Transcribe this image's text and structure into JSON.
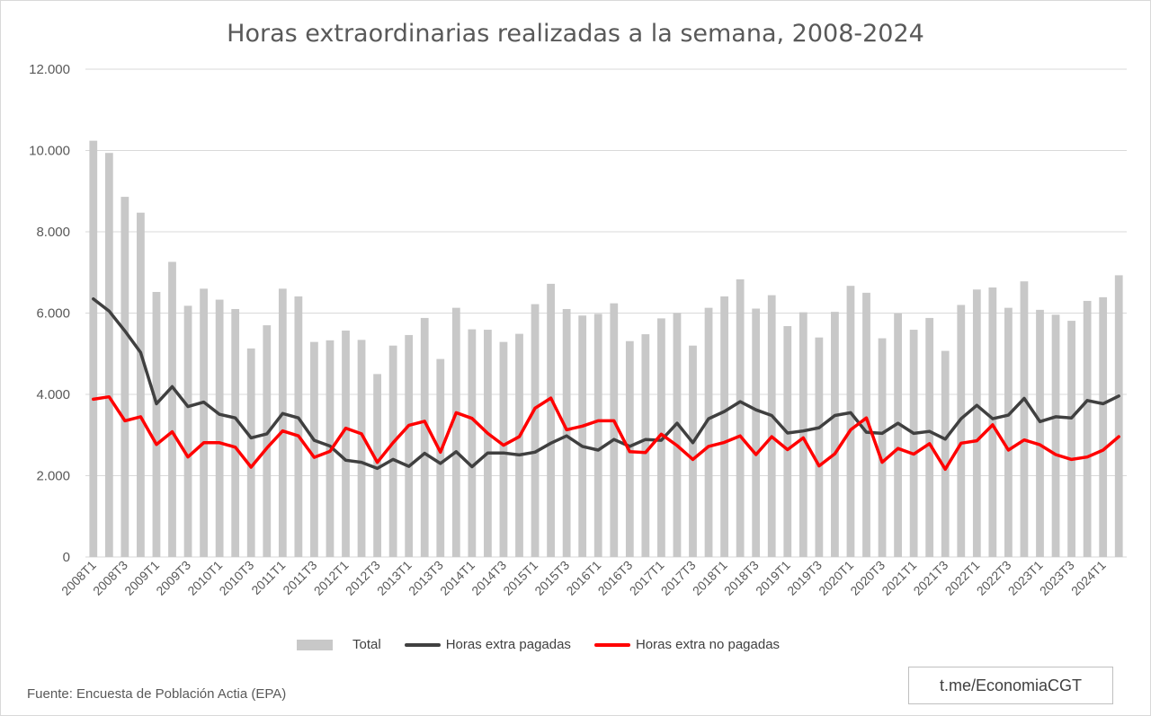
{
  "source": "Fuente: Encuesta de Población Actia (EPA)",
  "credit": "t.me/EconomiaCGT",
  "colors": {
    "total": "#c8c8c8",
    "pagadas": "#404040",
    "no_pagadas": "#ff0000",
    "grid": "#d9d9d9"
  },
  "chart_data": {
    "type": "bar",
    "title": "Horas extraordinarias realizadas a la semana, 2008-2024",
    "xlabel": "",
    "ylabel": "",
    "ylim": [
      0,
      12000
    ],
    "yticks": [
      0,
      2000,
      4000,
      6000,
      8000,
      10000,
      12000
    ],
    "ytick_labels": [
      "0",
      "2.000",
      "4.000",
      "6.000",
      "8.000",
      "10.000",
      "12.000"
    ],
    "grid": true,
    "legend_position": "bottom",
    "categories": [
      "2008T1",
      "2008T2",
      "2008T3",
      "2008T4",
      "2009T1",
      "2009T2",
      "2009T3",
      "2009T4",
      "2010T1",
      "2010T2",
      "2010T3",
      "2010T4",
      "2011T1",
      "2011T2",
      "2011T3",
      "2011T4",
      "2012T1",
      "2012T2",
      "2012T3",
      "2012T4",
      "2013T1",
      "2013T2",
      "2013T3",
      "2013T4",
      "2014T1",
      "2014T2",
      "2014T3",
      "2014T4",
      "2015T1",
      "2015T2",
      "2015T3",
      "2015T4",
      "2016T1",
      "2016T2",
      "2016T3",
      "2016T4",
      "2017T1",
      "2017T2",
      "2017T3",
      "2017T4",
      "2018T1",
      "2018T2",
      "2018T3",
      "2018T4",
      "2019T1",
      "2019T2",
      "2019T3",
      "2019T4",
      "2020T1",
      "2020T2",
      "2020T3",
      "2020T4",
      "2021T1",
      "2021T2",
      "2021T3",
      "2021T4",
      "2022T1",
      "2022T2",
      "2022T3",
      "2022T4",
      "2023T1",
      "2023T2",
      "2023T3",
      "2023T4",
      "2024T1",
      "2024T2"
    ],
    "xtick_labels": [
      "2008T1",
      "2008T3",
      "2009T1",
      "2009T3",
      "2010T1",
      "2010T3",
      "2011T1",
      "2011T3",
      "2012T1",
      "2012T3",
      "2013T1",
      "2013T3",
      "2014T1",
      "2014T3",
      "2015T1",
      "2015T3",
      "2016T1",
      "2016T3",
      "2017T1",
      "2017T3",
      "2018T1",
      "2018T3",
      "2019T1",
      "2019T3",
      "2020T1",
      "2020T3",
      "2021T1",
      "2021T3",
      "2022T1",
      "2022T3",
      "2023T1",
      "2023T3",
      "2024T1"
    ],
    "series": [
      {
        "name": "Total",
        "type": "bar",
        "values": [
          10240,
          9940,
          8860,
          8470,
          6520,
          7260,
          6180,
          6600,
          6330,
          6100,
          5130,
          5700,
          6600,
          6410,
          5290,
          5330,
          5570,
          5340,
          4500,
          5200,
          5460,
          5880,
          4870,
          6130,
          5600,
          5590,
          5290,
          5490,
          6220,
          6720,
          6100,
          5940,
          5980,
          6240,
          5310,
          5480,
          5870,
          6000,
          5200,
          6130,
          6410,
          6830,
          6110,
          6440,
          5680,
          6020,
          5400,
          6030,
          6670,
          6500,
          5380,
          5990,
          5590,
          5880,
          5070,
          6200,
          6580,
          6630,
          6130,
          6780,
          6080,
          5960,
          5810,
          6300,
          6390,
          6930
        ]
      },
      {
        "name": "Horas extra pagadas",
        "type": "line",
        "values": [
          6350,
          6050,
          5560,
          5030,
          3770,
          4190,
          3700,
          3810,
          3510,
          3420,
          2930,
          3030,
          3530,
          3420,
          2870,
          2730,
          2380,
          2330,
          2180,
          2400,
          2230,
          2550,
          2300,
          2590,
          2220,
          2560,
          2560,
          2510,
          2580,
          2800,
          2980,
          2720,
          2630,
          2890,
          2720,
          2890,
          2870,
          3290,
          2810,
          3400,
          3580,
          3820,
          3620,
          3480,
          3050,
          3100,
          3180,
          3480,
          3550,
          3070,
          3040,
          3290,
          3040,
          3090,
          2900,
          3400,
          3730,
          3400,
          3490,
          3900,
          3330,
          3450,
          3420,
          3850,
          3770,
          3960
        ]
      },
      {
        "name": "Horas extra no pagadas",
        "type": "line",
        "values": [
          3880,
          3940,
          3350,
          3450,
          2770,
          3080,
          2460,
          2810,
          2810,
          2700,
          2210,
          2680,
          3100,
          2980,
          2450,
          2600,
          3170,
          3030,
          2330,
          2810,
          3240,
          3340,
          2580,
          3550,
          3410,
          3040,
          2750,
          2960,
          3660,
          3910,
          3130,
          3220,
          3350,
          3350,
          2590,
          2570,
          3020,
          2740,
          2400,
          2720,
          2820,
          2980,
          2520,
          2960,
          2640,
          2930,
          2240,
          2540,
          3130,
          3420,
          2330,
          2670,
          2530,
          2790,
          2160,
          2800,
          2860,
          3250,
          2630,
          2880,
          2760,
          2520,
          2400,
          2460,
          2630,
          2960
        ]
      }
    ]
  }
}
